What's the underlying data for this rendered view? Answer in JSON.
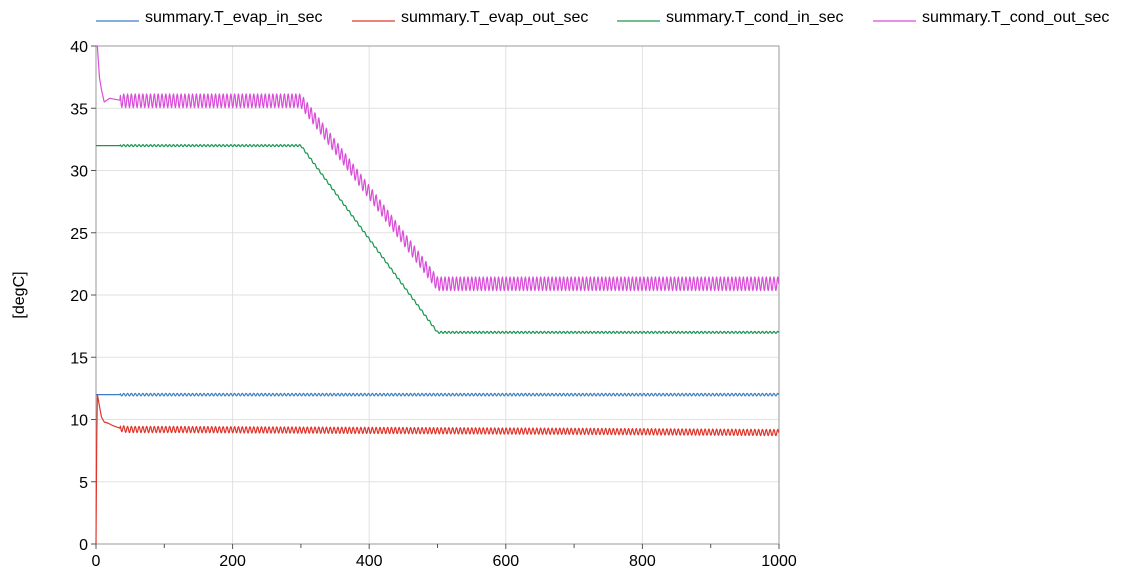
{
  "chart_data": {
    "type": "line",
    "xlabel": "",
    "ylabel": "[degC]",
    "xlim": [
      0,
      1000
    ],
    "ylim": [
      0,
      40
    ],
    "xticks": [
      0,
      200,
      400,
      600,
      800,
      1000
    ],
    "yticks": [
      0,
      5,
      10,
      15,
      20,
      25,
      30,
      35,
      40
    ],
    "grid": true,
    "legend_position": "top",
    "series": [
      {
        "name": "summary.T_evap_in_sec",
        "color": "#3a7fc4",
        "x": [
          0,
          1000
        ],
        "y": [
          12.0,
          12.0
        ],
        "ripple": 0.1
      },
      {
        "name": "summary.T_evap_out_sec",
        "color": "#e0352b",
        "x": [
          0,
          1,
          2,
          4,
          8,
          12,
          18,
          25,
          35,
          45,
          100,
          300,
          500,
          700,
          1000
        ],
        "y": [
          0,
          8,
          12,
          11.4,
          10.2,
          9.8,
          9.7,
          9.5,
          9.3,
          9.2,
          9.2,
          9.15,
          9.1,
          9.05,
          8.95
        ],
        "ripple": 0.25
      },
      {
        "name": "summary.T_cond_in_sec",
        "color": "#1a9650",
        "x": [
          0,
          300,
          500,
          1000
        ],
        "y": [
          32.0,
          32.0,
          17.0,
          17.0
        ],
        "ripple": 0.08
      },
      {
        "name": "summary.T_cond_out_sec",
        "color": "#d94ed8",
        "x": [
          0,
          2,
          5,
          8,
          12,
          20,
          40,
          300,
          500,
          1000
        ],
        "y": [
          40,
          40,
          37.5,
          36.5,
          35.5,
          35.8,
          35.6,
          35.6,
          20.9,
          20.9
        ],
        "ripple": 0.55
      }
    ]
  }
}
